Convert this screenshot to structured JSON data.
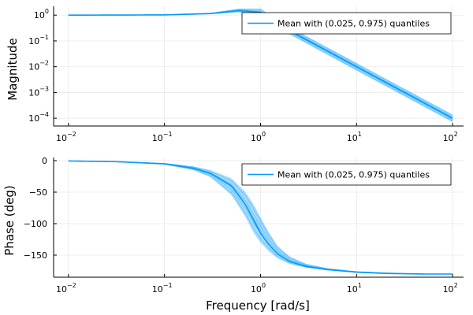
{
  "chart_data": [
    {
      "type": "line",
      "subplot": "magnitude",
      "title": "",
      "xlabel": "",
      "ylabel": "Magnitude",
      "xscale": "log",
      "yscale": "log",
      "xlim": [
        0.007,
        130
      ],
      "ylim": [
        5e-05,
        2.2
      ],
      "xticks": [
        {
          "base": "10",
          "exp": "−2",
          "value": 0.01
        },
        {
          "base": "10",
          "exp": "−1",
          "value": 0.1
        },
        {
          "base": "10",
          "exp": "0",
          "value": 1
        },
        {
          "base": "10",
          "exp": "1",
          "value": 10
        },
        {
          "base": "10",
          "exp": "2",
          "value": 100
        }
      ],
      "yticks": [
        {
          "base": "10",
          "exp": "0",
          "value": 1
        },
        {
          "base": "10",
          "exp": "−1",
          "value": 0.1
        },
        {
          "base": "10",
          "exp": "−2",
          "value": 0.01
        },
        {
          "base": "10",
          "exp": "−3",
          "value": 0.001
        },
        {
          "base": "10",
          "exp": "−4",
          "value": 0.0001
        }
      ],
      "grid": true,
      "legend": {
        "position": "top-right",
        "entries": [
          "Mean with (0.025, 0.975) quantiles"
        ]
      },
      "series": [
        {
          "name": "Mean with (0.025, 0.975) quantiles",
          "color": "#009af9",
          "x": [
            0.01,
            0.1,
            0.3,
            0.6,
            1,
            2,
            10,
            100
          ],
          "mean": [
            1.0,
            1.02,
            1.15,
            1.5,
            1.3,
            0.25,
            0.01,
            0.0001
          ],
          "lower": [
            1.0,
            1.01,
            1.1,
            1.3,
            0.9,
            0.18,
            0.007,
            7e-05
          ],
          "upper": [
            1.0,
            1.03,
            1.2,
            1.8,
            1.8,
            0.35,
            0.014,
            0.00014
          ]
        }
      ]
    },
    {
      "type": "line",
      "subplot": "phase",
      "title": "",
      "xlabel": "Frequency [rad/s]",
      "ylabel": "Phase (deg)",
      "xscale": "log",
      "yscale": "linear",
      "xlim": [
        0.007,
        130
      ],
      "ylim": [
        -185,
        5
      ],
      "xticks": [
        {
          "base": "10",
          "exp": "−2",
          "value": 0.01
        },
        {
          "base": "10",
          "exp": "−1",
          "value": 0.1
        },
        {
          "base": "10",
          "exp": "0",
          "value": 1
        },
        {
          "base": "10",
          "exp": "1",
          "value": 10
        },
        {
          "base": "10",
          "exp": "2",
          "value": 100
        }
      ],
      "yticks": [
        {
          "label": "0",
          "value": 0
        },
        {
          "label": "−50",
          "value": -50
        },
        {
          "label": "−100",
          "value": -100
        },
        {
          "label": "−150",
          "value": -150
        }
      ],
      "grid": true,
      "legend": {
        "position": "top-right",
        "entries": [
          "Mean with (0.025, 0.975) quantiles"
        ]
      },
      "series": [
        {
          "name": "Mean with (0.025, 0.975) quantiles",
          "color": "#009af9",
          "x": [
            0.01,
            0.03,
            0.1,
            0.2,
            0.3,
            0.5,
            0.7,
            0.85,
            1,
            1.2,
            1.5,
            2,
            3,
            5,
            10,
            20,
            50,
            100
          ],
          "mean": [
            -0.5,
            -1.5,
            -5,
            -12,
            -20,
            -40,
            -70,
            -95,
            -115,
            -132,
            -148,
            -160,
            -168,
            -173,
            -177,
            -179,
            -180,
            -180
          ],
          "lower": [
            -0.5,
            -1.5,
            -6,
            -15,
            -26,
            -55,
            -90,
            -115,
            -130,
            -143,
            -155,
            -164,
            -170,
            -174,
            -177,
            -179,
            -180,
            -180
          ],
          "upper": [
            -0.5,
            -1.5,
            -4,
            -9,
            -15,
            -28,
            -50,
            -70,
            -90,
            -112,
            -135,
            -152,
            -164,
            -171,
            -176,
            -178,
            -180,
            -180
          ]
        }
      ]
    }
  ]
}
